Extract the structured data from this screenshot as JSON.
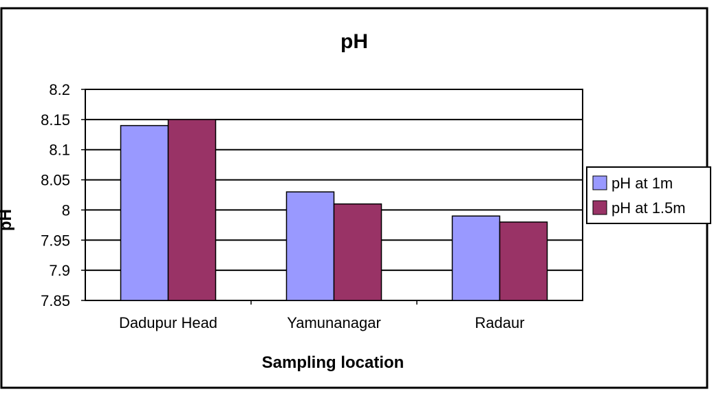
{
  "chart_data": {
    "type": "bar",
    "title": "pH",
    "xlabel": "Sampling location",
    "ylabel": "pH",
    "categories": [
      "Dadupur Head",
      "Yamunanagar",
      "Radaur"
    ],
    "series": [
      {
        "name": "pH at 1m",
        "values": [
          8.14,
          8.03,
          7.99
        ],
        "color": "#9999ff"
      },
      {
        "name": "pH at 1.5m",
        "values": [
          8.15,
          8.01,
          7.98
        ],
        "color": "#993366"
      }
    ],
    "ylim": [
      7.85,
      8.2
    ],
    "yticks": [
      "7.85",
      "7.9",
      "7.95",
      "8",
      "8.05",
      "8.1",
      "8.15",
      "8.2"
    ],
    "grid": true,
    "legend": "right"
  }
}
